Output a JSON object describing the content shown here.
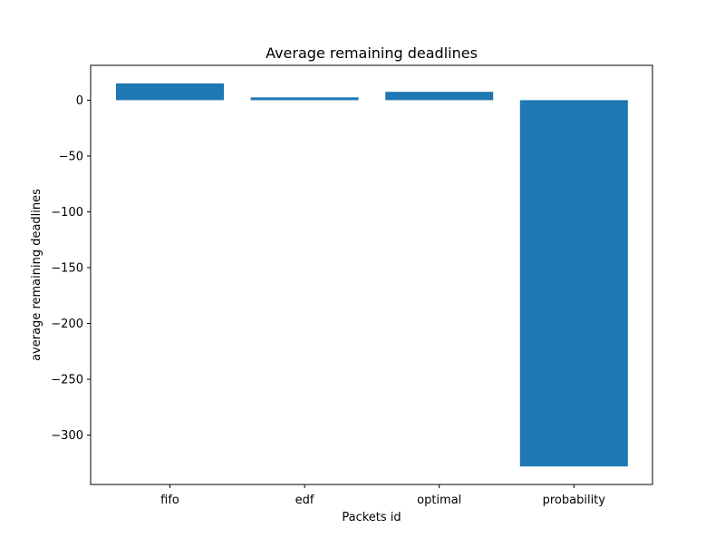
{
  "chart_data": {
    "type": "bar",
    "title": "Average remaining deadlines",
    "xlabel": "Packets id",
    "ylabel": "average remaining deadlines",
    "categories": [
      "fifo",
      "edf",
      "optimal",
      "probability"
    ],
    "values": [
      15,
      2.5,
      7.5,
      -328
    ],
    "ylim": [
      -344.2,
      31.2
    ],
    "yticks": [
      0,
      -50,
      -100,
      -150,
      -200,
      -250,
      -300
    ],
    "ytick_labels": [
      "0",
      "−50",
      "−100",
      "−150",
      "−200",
      "−250",
      "−300"
    ],
    "bar_color": "#1f77b4",
    "grid": false,
    "legend": "none"
  }
}
